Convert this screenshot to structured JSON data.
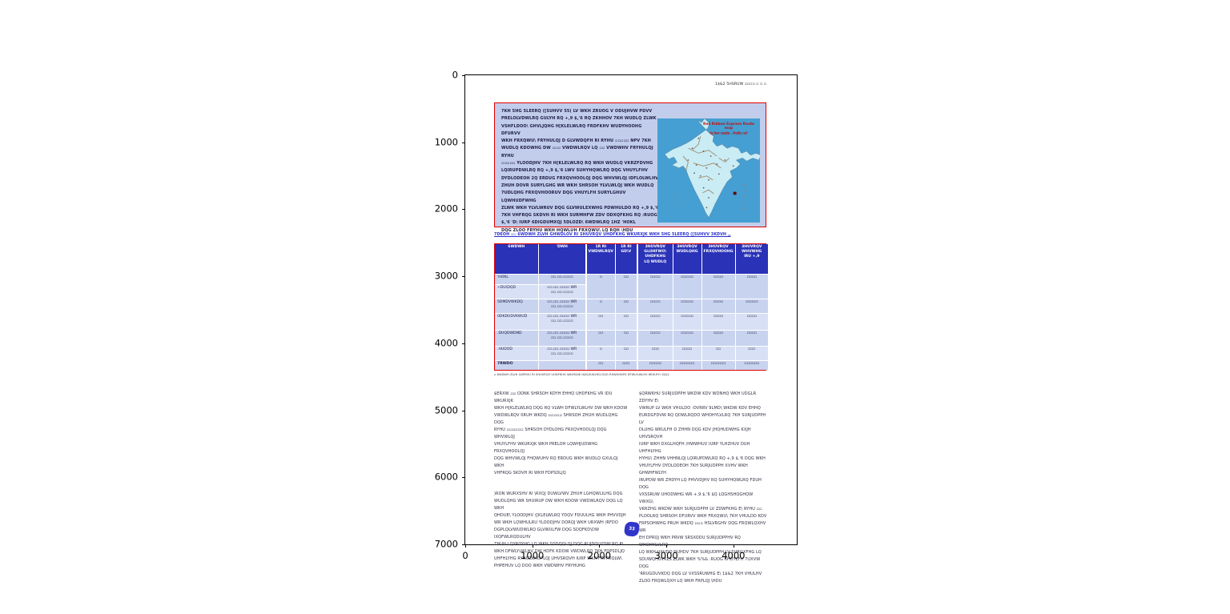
{
  "figure": {
    "x_ticks": [
      "0",
      "1000",
      "2000",
      "3000",
      "4000"
    ],
    "y_ticks": [
      "0",
      "1000",
      "2000",
      "3000",
      "4000",
      "5000",
      "6000",
      "7000"
    ]
  },
  "page": {
    "header_right": "1$&2 5HSRUW ▫▫▫▫  ▫ ▫ ▫",
    "intro": {
      "text": "7KH 5HG 5LEERQ ([SUHVV 55( LV WKH ZRUOG V ODUJHVW PDVV\nPRELOLVDWLRQ GULYH RQ +,9 $,'6 RQ ZKHHOV 7KH WUDLQ ZLWK\nVSHFLDOO\\ GHVLJQHG H[KLELWLRQ FRDFKHV WUDYHOOHG DFURVV\nWKH FRXQWU\\ FRYHULQJ D GLVWDQFH RI RYHU ▫▫▫▫▫ NPV 7KH\nWUDLQ KDOWHG DW ▫▫▫ VWDWLRQV LQ ▫▫ VWDWHV FRYHULQJ RYHU\n▫▫▫▫▫ YLOODJHV 7KH H[KLELWLRQ RQ WKH WUDLQ VKRZFDVHG\nLQIRUPDWLRQ RQ +,9 $,'6 LWV SUHYHQWLRQ DQG VHUYLFHV\nDYDLODEOH 2Q ERDUG FRXQVHOOLQJ DQG WHVWLQJ IDFLOLWLHV\nZHUH DOVR SURYLGHG WR WKH SHRSOH YLVLWLQJ WKH WUDLQ\n7UDLQHG FRXQVHOORUV DQG VHUYLFH SURYLGHUV LQWHUDFWHG\nZLWK WKH YLVLWRUV DQG GLVWULEXWHG PDWHULDO RQ +,9 $,'6\n7KH VHFRQG SKDVH RI WKH SURMHFW ZDV ODXQFKHG RQ :RUOG\n$,'6 'D\\ IURP 6DIGDUMXQJ 5DLOZD\\ 6WDWLRQ 1HZ 'HOKL\nDQG ZLOO FRYHU WKH HQWLUH FRXQWU\\ LQ RQH \\HDU"
    },
    "map": {
      "title_line1": "Red Ribbon Express Route map",
      "title_line2": "रेड रिबन एक्सप्रेस : निर्धारित मार्ग"
    },
    "table_caption": "7DEOH ▫▫   6WDWH ZLVH GHWDLOV RI SHUVRQV UHDFKHG WKURXJK WKH 5HG 5LEERQ ([SUHVV 3KDVH ,,",
    "table": {
      "headers": [
        "6WDWH",
        "'DWH",
        "1R RI\nVWDWLRQV",
        "1R RI\nGD\\V",
        "3HUVRQV\nGLUHFWO\\\nUHDFKHG\nLQ WUDLQ",
        "3HUVRQV\nWUDLQHG",
        "3HUVRQV\nFRXQVHOOHG",
        "3HUVRQV\nWHVWHG\nIRU +,9"
      ],
      "rows": [
        {
          "cells": [
            "'HOKL",
            "▫▫.▫▫.▫▫▫▫",
            "▫",
            "▫▫",
            "▫▫▫▫",
            "▫▫▫▫▫",
            "▫▫▫▫",
            "▫▫▫▫"
          ]
        },
        {
          "cells": [
            "+DU\\DQD",
            "▫▫.▫▫.▫▫▫▫ WR\n▫▫.▫▫.▫▫▫▫"
          ]
        },
        {
          "cells": [
            "5DMDVWKDQ",
            "▫▫.▫▫.▫▫▫▫ WR\n▫▫.▫▫.▫▫▫▫",
            "▫",
            "▫▫",
            "▫▫▫▫",
            "▫▫▫▫▫",
            "▫▫▫▫",
            "▫▫▫▫▫"
          ]
        },
        {
          "cells": [
            "0DKDUDVKWUD",
            "▫▫.▫▫.▫▫▫▫ WR\n▫▫.▫▫.▫▫▫▫",
            "▫▫",
            "▫▫",
            "▫▫▫▫",
            "▫▫▫▫▫",
            "▫▫▫▫",
            "▫▫▫▫"
          ]
        },
        {
          "cells": [
            ".DUQDWDND",
            "▫▫.▫▫.▫▫▫▫ WR\n▫▫.▫▫.▫▫▫▫",
            "▫▫",
            "▫▫",
            "▫▫▫▫",
            "▫▫▫▫▫",
            "▫▫▫▫",
            "▫▫▫▫"
          ]
        },
        {
          "cells": [
            ".HUDOD",
            "▫▫.▫▫.▫▫▫▫ WR\n▫▫.▫▫.▫▫▫▫",
            "▫",
            "▫▫",
            "▫▫▫",
            "▫▫▫▫",
            "▫▫",
            "▫▫▫"
          ]
        }
      ],
      "total": {
        "cells": [
          "7RWDO",
          "",
          "▫▫",
          "▫▫▫",
          "▫▫▫▫▫",
          "▫▫▫▫▫▫",
          "▫▫▫▫▫▫",
          "▫▫▫▫▫▫"
        ]
      }
    },
    "footnote": "▫ 6WDWH ZLVH QXPEHU RI SHUVRQV UHDFKHG WKURXJK H[KLELWLRQ DQG RXWUHDFK DFWLYLWLHV  6RXUFH 1$&2",
    "left_col": {
      "para1": "$ERXW ▫▫ ODNK SHRSOH KDYH EHHQ UHDFKHG VR IDU WKURXJK\nWKH H[KLELWLRQ DQG RQ VLWH DFWLYLWLHV DW WKH KDOW\nVWDWLRQV 0RUH WKDQ ▫▫▫▫▫ SHRSOH ZHUH WUDLQHG DQG\nRYHU ▫▫▫▫▫▫ SHRSOH DYDLOHG FRXQVHOOLQJ DQG WHVWLQJ\nVHUYLFHV WKURXJK WKH PRELOH LQWHJUDWHG FRXQVHOOLQJ\nDQG WHVWLQJ FHQWUHV RQ ERDUG WKH WUDLQ GXULQJ WKH\nVHFRQG SKDVH RI WKH FDPSDLJQ",
      "para2": ")RON WURXSHV RI \\RXQJ DUWLVWV ZHUH LGHQWLILHG DQG\nWUDLQHG WR SHUIRUP DW WKH KDOW VWDWLRQV DQG LQ WKH\nQHDUE\\ YLOODJHV ([KLELWLRQ YDQV FDUULHG WKH PHVVDJH\nWR WKH LQWHULRU YLOODJHV DORQJ WKH URXWH /RFDO\nDGPLQLVWUDWLRQ GLVWULFW DQG SDQFKD\\DW IXQFWLRQDULHV\nZHUH LQYROYHG LQ WKH SODQQLQJ DQG RUJDQLVDWLRQ RI\nWKH DFWLYLWLHV DW HDFK KDOW VWDWLRQ 7KH FDPSDLJQ\nUHFHLYHG RYHUZKHOPLQJ UHVSRQVH IURP WKH FRPPXQLW\\\nPHPEHUV LQ DOO WKH VWDWHV FRYHUHG"
    },
    "right_col": {
      "para1": "$QRWKHU SURJUDPPH WKDW KDV WDNHQ WKH UDGLR ZDYHV E\\\nVWRUP LV WKH VHULDO -DVRRV 9LMD\\ WKDW KDV EHHQ\nEURDGFDVW RQ QDWLRQDO WHOHYLVLRQ 7KH SURJUDPPH LV\nDLUHG WKULFH D ZHHN DQG KDV JHQHUDWHG KXJH UHVSRQVH\nIURP WKH DXGLHQFH /HWWHUV IURP YLHZHUV DUH UHFHLYHG\nHYHU\\ ZHHN VHHNLQJ LQIRUPDWLRQ RQ +,9 $,'6 DQG WKH\nVHUYLFHV DYDLODEOH 7KH SURJUDPPH XVHV WKH GHWHFWLYH\nIRUPDW WR ZHDYH LQ PHVVDJHV RQ SUHYHQWLRQ FDUH DQG\nVXSSRUW UHODWHG WR +,9 $,'6 $Q LQGHSHQGHQW VWXG\\\nVKRZHG WKDW WKH SURJUDPPH LV ZDWFKHG E\\ RYHU ▫▫\nPLOOLRQ SHRSOH DFURVV WKH FRXQWU\\ 7KH VHULDO KDV\nFRPSOHWHG PRUH WKDQ ▫▫▫ HSLVRGHV DQG FRQWLQXHV WR\nEH DPRQJ WKH PRVW SRSXODU SURJUDPPHV RQ WHOHYLVLRQ\nLQ WKH UXUDO DUHDV 7KH SURJUDPPH LV SURGXFHG LQ\nSDUWQHUVKLS ZLWK WKH %%& :RUOG 6HUYLFH 7UXVW DQG\n'RRUGDUVKDQ DQG LV VXSSRUWHG E\\ 1$&2 7KH VHULHV\nZLOO FRQWLQXH LQ WKH FRPLQJ \\HDU"
    },
    "badge": "33"
  },
  "colors": {
    "accent_red": "#e00000",
    "intro_box_blue": "#c2cdeb",
    "table_header_blue": "#2a32b8",
    "row_dark": "#c8d3ef",
    "row_light": "#d8e0f5",
    "map_sea": "#459fd2",
    "map_land": "#c9ecf5",
    "caption_blue": "#2a2fd0",
    "badge_blue": "#3136c8"
  }
}
